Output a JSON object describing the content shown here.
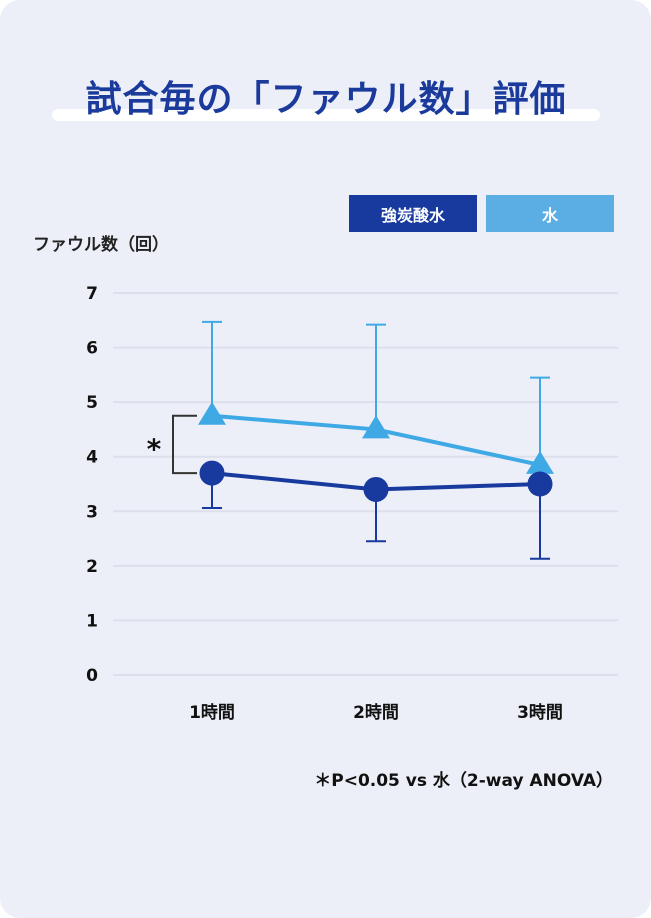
{
  "title": "試合毎の「ファウル数」評価",
  "legend": [
    {
      "label": "強炭酸水",
      "color": "#183A9E"
    },
    {
      "label": "水",
      "color": "#5AAEE3"
    }
  ],
  "y_axis_label": "ファウル数（回）",
  "footnote": "＊P<0.05 vs 水（2-way ANOVA）",
  "significance_marker": "＊",
  "chart_data": {
    "type": "line",
    "title": "試合毎の「ファウル数」評価",
    "xlabel": "",
    "ylabel": "ファウル数（回）",
    "categories": [
      "1時間",
      "2時間",
      "3時間"
    ],
    "ylim": [
      0,
      7
    ],
    "yticks": [
      0,
      1,
      2,
      3,
      4,
      5,
      6,
      7
    ],
    "grid": true,
    "legend_position": "top-right",
    "series": [
      {
        "name": "強炭酸水",
        "color": "#183A9E",
        "marker": "circle",
        "values": [
          3.7,
          3.4,
          3.5
        ],
        "error_lower": [
          3.06,
          2.45,
          2.13
        ]
      },
      {
        "name": "水",
        "color": "#3FA9E6",
        "marker": "triangle",
        "values": [
          4.75,
          4.5,
          3.85
        ],
        "error_upper": [
          6.47,
          6.42,
          5.45
        ]
      }
    ],
    "annotations": [
      "＊ significant difference at 1時間 (P<0.05 vs 水, 2-way ANOVA)"
    ]
  }
}
